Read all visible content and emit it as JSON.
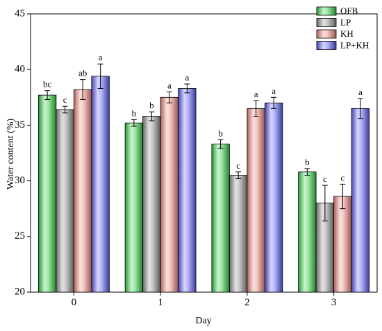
{
  "chart_data": {
    "type": "bar",
    "xlabel": "Day",
    "ylabel": "Water content (%)",
    "ylim": [
      20,
      45
    ],
    "yticks": [
      20,
      25,
      30,
      35,
      40,
      45
    ],
    "categories": [
      "0",
      "1",
      "2",
      "3"
    ],
    "grid": false,
    "legend_position": "top-right",
    "series": [
      {
        "name": "OFB",
        "color": "#2ecc40",
        "values": [
          37.7,
          35.2,
          33.3,
          30.8
        ],
        "errors": [
          0.4,
          0.3,
          0.4,
          0.3
        ],
        "letters": [
          "bc",
          "b",
          "b",
          "b"
        ]
      },
      {
        "name": "LP",
        "color": "#8a8a8a",
        "values": [
          36.4,
          35.8,
          30.5,
          28.0
        ],
        "errors": [
          0.3,
          0.4,
          0.3,
          1.6
        ],
        "letters": [
          "c",
          "b",
          "c",
          "c"
        ]
      },
      {
        "name": "KH",
        "color": "#e8847a",
        "values": [
          38.2,
          37.5,
          36.5,
          28.6
        ],
        "errors": [
          0.9,
          0.5,
          0.7,
          1.1
        ],
        "letters": [
          "ab",
          "a",
          "a",
          "c"
        ]
      },
      {
        "name": "LP+KH",
        "color": "#5a5af0",
        "values": [
          39.4,
          38.3,
          37.0,
          36.5
        ],
        "errors": [
          1.1,
          0.4,
          0.5,
          0.9
        ],
        "letters": [
          "a",
          "a",
          "a",
          "a"
        ]
      }
    ]
  }
}
